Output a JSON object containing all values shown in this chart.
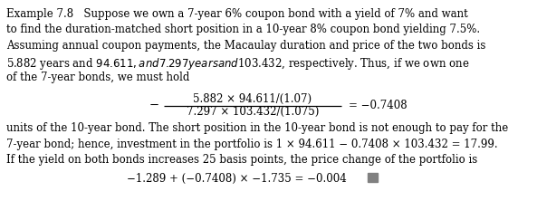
{
  "background_color": "#ffffff",
  "font_family": "serif",
  "line1": "Example 7.8   Suppose we own a 7-year 6% coupon bond with a yield of 7% and want",
  "line2": "to find the duration-matched short position in a 10-year 8% coupon bond yielding 7.5%.",
  "line3": "Assuming annual coupon payments, the Macaulay duration and price of the two bonds is",
  "line4": "5.882 years and $94.611, and 7.297 years and $103.432, respectively. Thus, if we own one",
  "line5": "of the 7-year bonds, we must hold",
  "numerator": "5.882 × 94.611/(1.07)",
  "denominator": "7.297 × 103.432/(1.075)",
  "neg_sign": "−",
  "equals_result": "= −0.7408",
  "line6": "units of the 10-year bond. The short position in the 10-year bond is not enough to pay for the",
  "line7": "7-year bond; hence, investment in the portfolio is 1 × 94.611 − 0.7408 × 103.432 = 17.99.",
  "line8": "If the yield on both bonds increases 25 basis points, the price change of the portfolio is",
  "equation_final": "−1.289 + (−0.7408) × −1.735 = −0.004",
  "text_color": "#000000",
  "fontsize": 8.5,
  "square_color": "#808080"
}
